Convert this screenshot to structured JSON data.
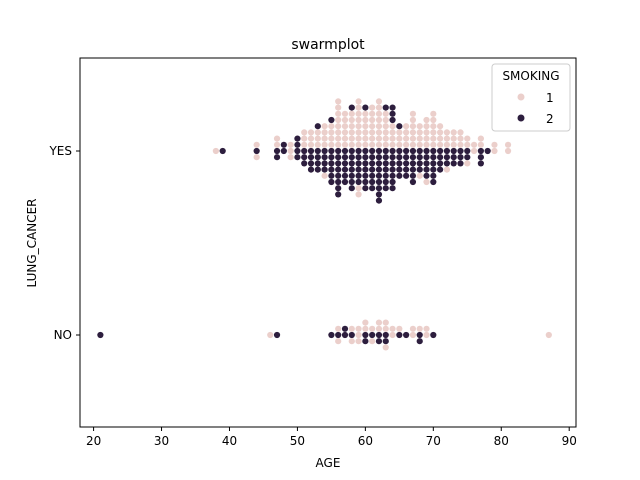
{
  "chart_data": {
    "type": "scatter",
    "subtype": "swarm",
    "title": "swarmplot",
    "xlabel": "AGE",
    "ylabel": "LUNG_CANCER",
    "xlim": [
      18,
      91
    ],
    "xticks": [
      "20",
      "30",
      "40",
      "50",
      "60",
      "70",
      "80",
      "90"
    ],
    "categories": [
      "YES",
      "NO"
    ],
    "legend": {
      "title": "SMOKING",
      "position": "top-right"
    },
    "series": [
      {
        "name": "1",
        "color": "#ebcfcb",
        "points": [
          {
            "category": "YES",
            "x": 38,
            "count": 1
          },
          {
            "category": "YES",
            "x": 44,
            "count": 2
          },
          {
            "category": "YES",
            "x": 47,
            "count": 2
          },
          {
            "category": "YES",
            "x": 49,
            "count": 3
          },
          {
            "category": "YES",
            "x": 51,
            "count": 3
          },
          {
            "category": "YES",
            "x": 52,
            "count": 3
          },
          {
            "category": "YES",
            "x": 53,
            "count": 3
          },
          {
            "category": "YES",
            "x": 54,
            "count": 5
          },
          {
            "category": "YES",
            "x": 55,
            "count": 4
          },
          {
            "category": "YES",
            "x": 56,
            "count": 8
          },
          {
            "category": "YES",
            "x": 57,
            "count": 6
          },
          {
            "category": "YES",
            "x": 58,
            "count": 6
          },
          {
            "category": "YES",
            "x": 59,
            "count": 10
          },
          {
            "category": "YES",
            "x": 60,
            "count": 6
          },
          {
            "category": "YES",
            "x": 61,
            "count": 7
          },
          {
            "category": "YES",
            "x": 62,
            "count": 8
          },
          {
            "category": "YES",
            "x": 63,
            "count": 6
          },
          {
            "category": "YES",
            "x": 64,
            "count": 4
          },
          {
            "category": "YES",
            "x": 65,
            "count": 3
          },
          {
            "category": "YES",
            "x": 66,
            "count": 4
          },
          {
            "category": "YES",
            "x": 67,
            "count": 6
          },
          {
            "category": "YES",
            "x": 68,
            "count": 5
          },
          {
            "category": "YES",
            "x": 69,
            "count": 6
          },
          {
            "category": "YES",
            "x": 70,
            "count": 6
          },
          {
            "category": "YES",
            "x": 71,
            "count": 4
          },
          {
            "category": "YES",
            "x": 72,
            "count": 4
          },
          {
            "category": "YES",
            "x": 73,
            "count": 3
          },
          {
            "category": "YES",
            "x": 74,
            "count": 3
          },
          {
            "category": "YES",
            "x": 75,
            "count": 3
          },
          {
            "category": "YES",
            "x": 76,
            "count": 2
          },
          {
            "category": "YES",
            "x": 77,
            "count": 2
          },
          {
            "category": "YES",
            "x": 79,
            "count": 2
          },
          {
            "category": "YES",
            "x": 81,
            "count": 2
          },
          {
            "category": "NO",
            "x": 46,
            "count": 1
          },
          {
            "category": "NO",
            "x": 56,
            "count": 2
          },
          {
            "category": "NO",
            "x": 58,
            "count": 2
          },
          {
            "category": "NO",
            "x": 59,
            "count": 3
          },
          {
            "category": "NO",
            "x": 60,
            "count": 2
          },
          {
            "category": "NO",
            "x": 61,
            "count": 2
          },
          {
            "category": "NO",
            "x": 62,
            "count": 2
          },
          {
            "category": "NO",
            "x": 63,
            "count": 3
          },
          {
            "category": "NO",
            "x": 64,
            "count": 2
          },
          {
            "category": "NO",
            "x": 65,
            "count": 1
          },
          {
            "category": "NO",
            "x": 67,
            "count": 2
          },
          {
            "category": "NO",
            "x": 68,
            "count": 1
          },
          {
            "category": "NO",
            "x": 69,
            "count": 2
          },
          {
            "category": "NO",
            "x": 87,
            "count": 1
          }
        ]
      },
      {
        "name": "2",
        "color": "#2d1e3e",
        "points": [
          {
            "category": "YES",
            "x": 39,
            "count": 1
          },
          {
            "category": "YES",
            "x": 44,
            "count": 1
          },
          {
            "category": "YES",
            "x": 47,
            "count": 2
          },
          {
            "category": "YES",
            "x": 48,
            "count": 2
          },
          {
            "category": "YES",
            "x": 50,
            "count": 4
          },
          {
            "category": "YES",
            "x": 51,
            "count": 3
          },
          {
            "category": "YES",
            "x": 52,
            "count": 4
          },
          {
            "category": "YES",
            "x": 53,
            "count": 5
          },
          {
            "category": "YES",
            "x": 54,
            "count": 4
          },
          {
            "category": "YES",
            "x": 55,
            "count": 7
          },
          {
            "category": "YES",
            "x": 56,
            "count": 8
          },
          {
            "category": "YES",
            "x": 57,
            "count": 6
          },
          {
            "category": "YES",
            "x": 58,
            "count": 8
          },
          {
            "category": "YES",
            "x": 59,
            "count": 6
          },
          {
            "category": "YES",
            "x": 60,
            "count": 8
          },
          {
            "category": "YES",
            "x": 61,
            "count": 7
          },
          {
            "category": "YES",
            "x": 62,
            "count": 9
          },
          {
            "category": "YES",
            "x": 63,
            "count": 8
          },
          {
            "category": "YES",
            "x": 64,
            "count": 10
          },
          {
            "category": "YES",
            "x": 65,
            "count": 6
          },
          {
            "category": "YES",
            "x": 66,
            "count": 5
          },
          {
            "category": "YES",
            "x": 67,
            "count": 6
          },
          {
            "category": "YES",
            "x": 68,
            "count": 4
          },
          {
            "category": "YES",
            "x": 69,
            "count": 5
          },
          {
            "category": "YES",
            "x": 70,
            "count": 6
          },
          {
            "category": "YES",
            "x": 71,
            "count": 4
          },
          {
            "category": "YES",
            "x": 72,
            "count": 3
          },
          {
            "category": "YES",
            "x": 73,
            "count": 3
          },
          {
            "category": "YES",
            "x": 74,
            "count": 3
          },
          {
            "category": "YES",
            "x": 75,
            "count": 2
          },
          {
            "category": "YES",
            "x": 77,
            "count": 3
          },
          {
            "category": "YES",
            "x": 78,
            "count": 1
          },
          {
            "category": "NO",
            "x": 21,
            "count": 1
          },
          {
            "category": "NO",
            "x": 47,
            "count": 1
          },
          {
            "category": "NO",
            "x": 55,
            "count": 1
          },
          {
            "category": "NO",
            "x": 56,
            "count": 1
          },
          {
            "category": "NO",
            "x": 57,
            "count": 2
          },
          {
            "category": "NO",
            "x": 58,
            "count": 1
          },
          {
            "category": "NO",
            "x": 60,
            "count": 2
          },
          {
            "category": "NO",
            "x": 61,
            "count": 1
          },
          {
            "category": "NO",
            "x": 62,
            "count": 2
          },
          {
            "category": "NO",
            "x": 63,
            "count": 2
          },
          {
            "category": "NO",
            "x": 65,
            "count": 1
          },
          {
            "category": "NO",
            "x": 66,
            "count": 1
          },
          {
            "category": "NO",
            "x": 68,
            "count": 2
          },
          {
            "category": "NO",
            "x": 70,
            "count": 1
          }
        ]
      }
    ]
  }
}
